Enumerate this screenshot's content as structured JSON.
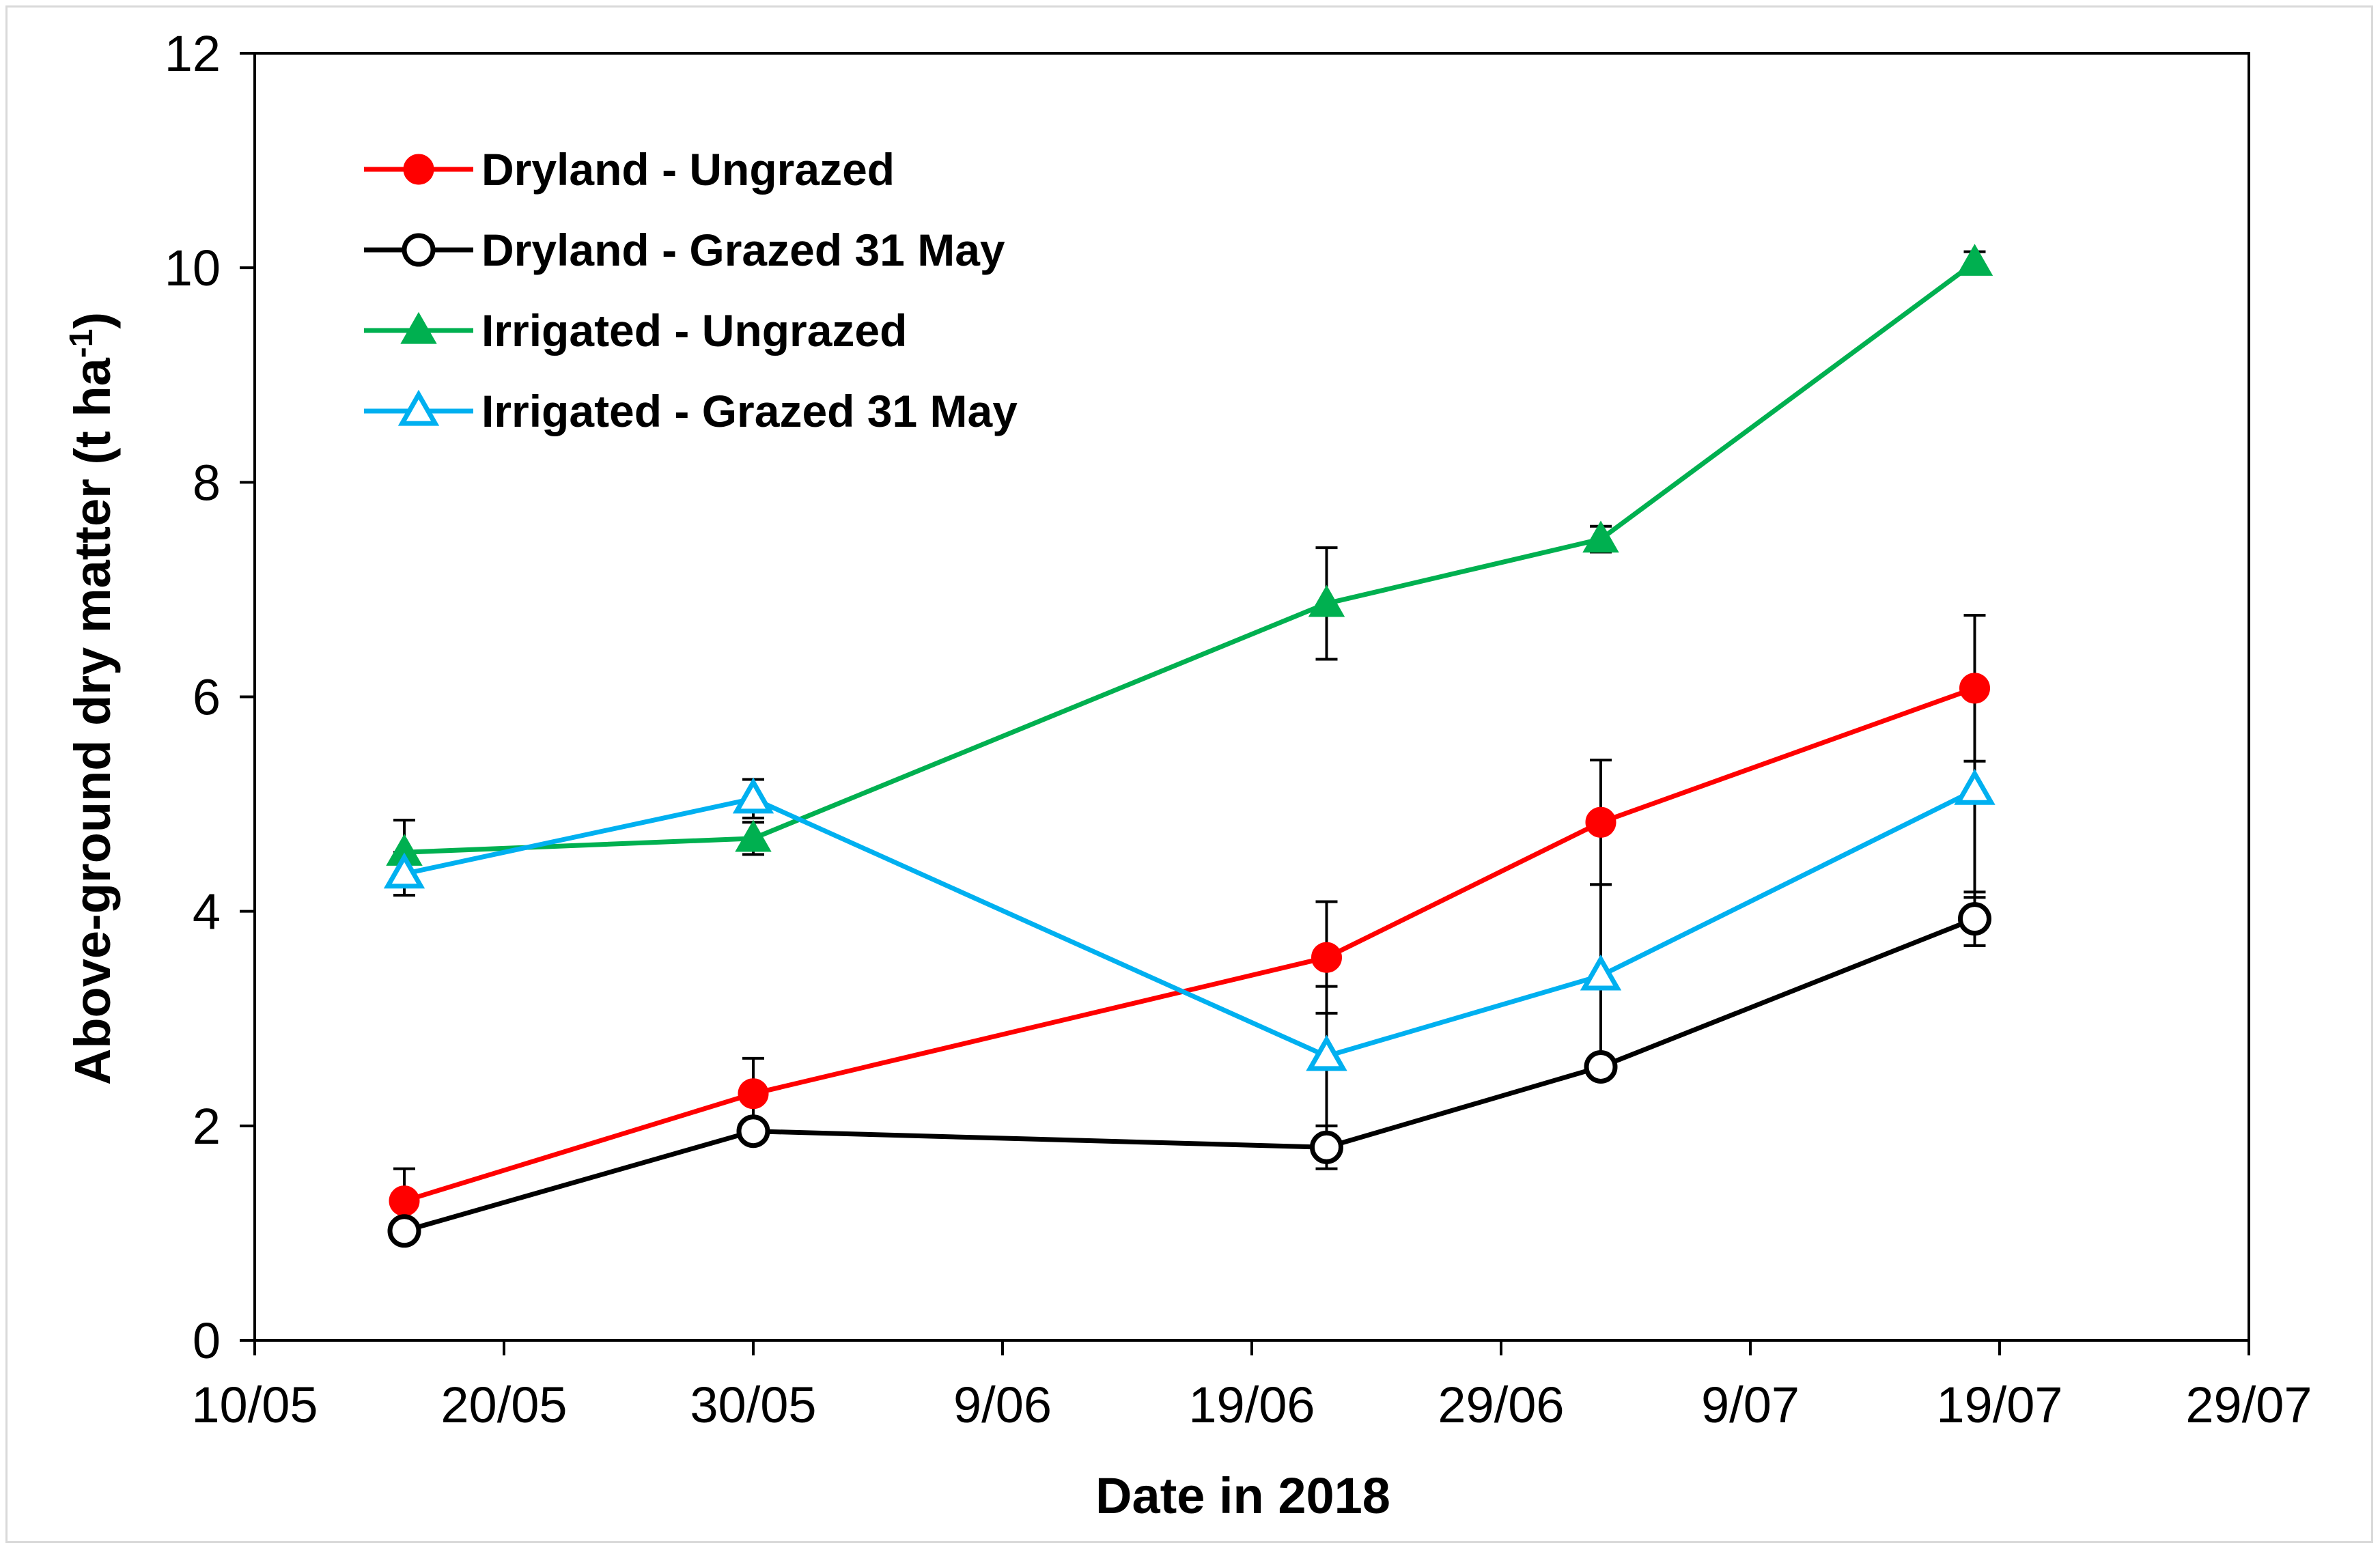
{
  "chart_data": {
    "type": "line",
    "title": "",
    "xlabel": "Date in 2018",
    "ylabel": "Above-ground dry matter (t ha",
    "ylabel_superscript": "-1",
    "ylabel_close": ")",
    "xlim": [
      0,
      80
    ],
    "ylim": [
      0,
      12
    ],
    "x_ticks": [
      {
        "value": 0,
        "label": "10/05"
      },
      {
        "value": 10,
        "label": "20/05"
      },
      {
        "value": 20,
        "label": "30/05"
      },
      {
        "value": 30,
        "label": "9/06"
      },
      {
        "value": 40,
        "label": "19/06"
      },
      {
        "value": 50,
        "label": "29/06"
      },
      {
        "value": 60,
        "label": "9/07"
      },
      {
        "value": 70,
        "label": "19/07"
      },
      {
        "value": 80,
        "label": "29/07"
      }
    ],
    "y_ticks": [
      0,
      2,
      4,
      6,
      8,
      10,
      12
    ],
    "grid": false,
    "legend_position": "top-left",
    "series": [
      {
        "name": "Dryland - Ungrazed",
        "color": "#ff0000",
        "marker": "circle-filled",
        "x": [
          6,
          20,
          43,
          54,
          69
        ],
        "values": [
          1.3,
          2.3,
          3.57,
          4.83,
          6.08
        ],
        "errors": [
          0.3,
          0.33,
          0.52,
          0.58,
          0.68
        ]
      },
      {
        "name": "Dryland - Grazed 31 May",
        "color": "#000000",
        "marker": "circle-open",
        "x": [
          6,
          20,
          43,
          54,
          69
        ],
        "values": [
          1.02,
          1.95,
          1.8,
          2.55,
          3.93
        ],
        "errors": [
          0.08,
          0.05,
          0.2,
          0.1,
          0.25
        ]
      },
      {
        "name": "Irrigated - Ungrazed",
        "color": "#00b050",
        "marker": "triangle-filled",
        "x": [
          6,
          20,
          43,
          54,
          69
        ],
        "values": [
          4.55,
          4.68,
          6.87,
          7.47,
          10.05
        ],
        "errors": [
          0.3,
          0.15,
          0.52,
          0.12,
          0.1
        ]
      },
      {
        "name": "Irrigated - Grazed 31 May",
        "color": "#00b0f0",
        "marker": "triangle-open",
        "x": [
          6,
          20,
          43,
          54,
          69
        ],
        "values": [
          4.35,
          5.05,
          2.65,
          3.4,
          5.13
        ],
        "errors": [
          0.2,
          0.18,
          0.65,
          0.85,
          1.0
        ]
      }
    ]
  }
}
